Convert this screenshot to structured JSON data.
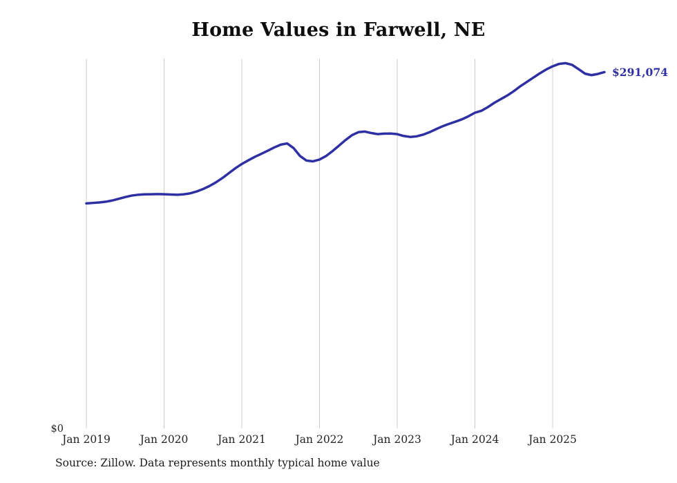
{
  "page": {
    "background_color": "#ffffff"
  },
  "chart": {
    "title": "Home Values in Farwell, NE",
    "source_note": "Source: Zillow. Data represents monthly typical home value",
    "y_zero_label": "$0",
    "end_label": "$291,074",
    "line_color": "#2e2fa3",
    "gridline_color": "#cccccc",
    "tick_label_color": "#222222"
  },
  "chart_data": {
    "type": "line",
    "title": "Home Values in Farwell, NE",
    "series_name": "Monthly typical home value (Zillow)",
    "xlabel": "",
    "ylabel": "",
    "ylim": [
      0,
      302000
    ],
    "grid": "vertical-only",
    "legend": "none",
    "final_value": 291074,
    "end_label": "$291,074",
    "source": "Source: Zillow. Data represents monthly typical home value",
    "xticks": [
      {
        "label": "Jan 2019",
        "month_index": 0
      },
      {
        "label": "Jan 2020",
        "month_index": 12
      },
      {
        "label": "Jan 2021",
        "month_index": 24
      },
      {
        "label": "Jan 2022",
        "month_index": 36
      },
      {
        "label": "Jan 2023",
        "month_index": 48
      },
      {
        "label": "Jan 2024",
        "month_index": 60
      },
      {
        "label": "Jan 2025",
        "month_index": 72
      }
    ],
    "x": [
      "2019-01",
      "2019-02",
      "2019-03",
      "2019-04",
      "2019-05",
      "2019-06",
      "2019-07",
      "2019-08",
      "2019-09",
      "2019-10",
      "2019-11",
      "2019-12",
      "2020-01",
      "2020-02",
      "2020-03",
      "2020-04",
      "2020-05",
      "2020-06",
      "2020-07",
      "2020-08",
      "2020-09",
      "2020-10",
      "2020-11",
      "2020-12",
      "2021-01",
      "2021-02",
      "2021-03",
      "2021-04",
      "2021-05",
      "2021-06",
      "2021-07",
      "2021-08",
      "2021-09",
      "2021-10",
      "2021-11",
      "2021-12",
      "2022-01",
      "2022-02",
      "2022-03",
      "2022-04",
      "2022-05",
      "2022-06",
      "2022-07",
      "2022-08",
      "2022-09",
      "2022-10",
      "2022-11",
      "2022-12",
      "2023-01",
      "2023-02",
      "2023-03",
      "2023-04",
      "2023-05",
      "2023-06",
      "2023-07",
      "2023-08",
      "2023-09",
      "2023-10",
      "2023-11",
      "2023-12",
      "2024-01",
      "2024-02",
      "2024-03",
      "2024-04",
      "2024-05",
      "2024-06",
      "2024-07",
      "2024-08",
      "2024-09",
      "2024-10",
      "2024-11",
      "2024-12",
      "2025-01",
      "2025-02",
      "2025-03",
      "2025-04",
      "2025-05",
      "2025-06",
      "2025-07",
      "2025-08",
      "2025-09"
    ],
    "values": [
      183800,
      184200,
      184600,
      185200,
      186200,
      187600,
      189000,
      190200,
      190900,
      191200,
      191300,
      191400,
      191300,
      191100,
      190900,
      191200,
      192000,
      193500,
      195500,
      198000,
      201000,
      204500,
      208500,
      212500,
      216000,
      219000,
      221800,
      224300,
      226800,
      229500,
      231800,
      232800,
      229000,
      222500,
      218800,
      218200,
      219600,
      222500,
      226500,
      231000,
      235500,
      239500,
      242000,
      242500,
      241300,
      240400,
      240800,
      240900,
      240400,
      238900,
      238100,
      238600,
      240000,
      242000,
      244500,
      246800,
      248800,
      250600,
      252500,
      255000,
      257900,
      259500,
      262500,
      266000,
      269000,
      272000,
      275500,
      279500,
      283000,
      286500,
      290000,
      293200,
      295800,
      297800,
      298400,
      297000,
      293500,
      289800,
      288600,
      289600,
      291074
    ]
  }
}
